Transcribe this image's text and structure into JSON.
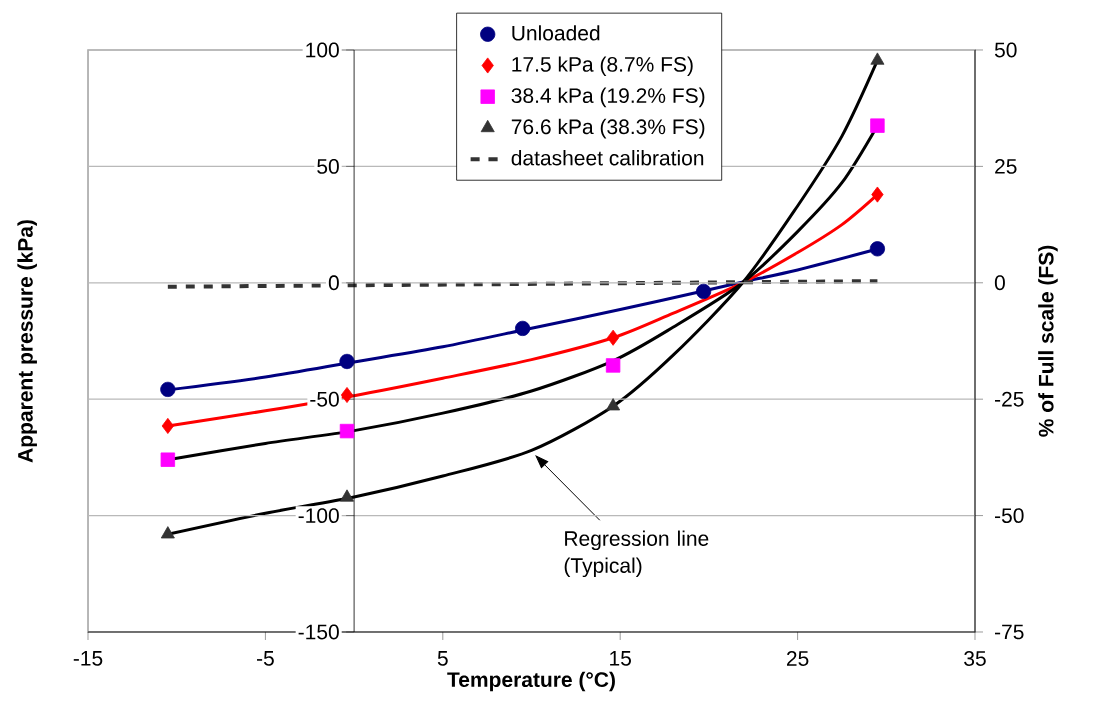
{
  "chart_data": {
    "type": "scatter",
    "xlabel": "Temperature (°C)",
    "ylabel": "Apparent pressure (kPa)",
    "y2label": "% of Full scale (FS)",
    "xlim": [
      -15,
      35
    ],
    "xticks": [
      -15,
      -5,
      5,
      15,
      25,
      35
    ],
    "ylim": [
      -150,
      100
    ],
    "yticks": [
      -150,
      -100,
      -50,
      0,
      50,
      100
    ],
    "y2lim": [
      -75,
      50
    ],
    "y2ticks": [
      -75,
      -50,
      -25,
      0,
      25,
      50
    ],
    "grid": "y",
    "legend": "top",
    "annotations": [
      "Regression line (Typical)"
    ],
    "series": [
      {
        "type": "line",
        "color": "#000080",
        "marker": "none",
        "x": [
          -10.5,
          -5,
          0,
          5,
          10,
          15,
          20,
          22,
          25,
          29.5
        ],
        "values": [
          -46,
          -40.5,
          -34,
          -27.5,
          -19.5,
          -11.5,
          -3,
          0.5,
          5.5,
          14.5
        ]
      },
      {
        "type": "line",
        "color": "#ff0000",
        "marker": "none",
        "x": [
          -10.5,
          -5,
          0,
          5,
          10,
          14.6,
          18,
          21.9,
          25,
          27.5,
          29.5
        ],
        "values": [
          -61.5,
          -55,
          -48.5,
          -41,
          -33,
          -23.6,
          -13,
          0,
          13,
          25,
          37.9
        ]
      },
      {
        "type": "line",
        "color": "#000000",
        "marker": "none",
        "x": [
          -10.5,
          -5,
          0,
          5,
          10,
          14.6,
          18,
          21.9,
          25,
          27.5,
          29.5
        ],
        "values": [
          -76,
          -69,
          -63.5,
          -56,
          -46.5,
          -33.5,
          -19,
          0,
          22,
          43,
          67.5
        ]
      },
      {
        "type": "line",
        "color": "#000000",
        "marker": "none",
        "x": [
          -10.5,
          -5,
          0,
          5,
          10,
          14.6,
          18,
          21.9,
          25,
          27.5,
          29.5
        ],
        "values": [
          -108,
          -99,
          -92,
          -83,
          -72,
          -53,
          -31,
          0,
          33,
          63,
          95.5
        ]
      },
      {
        "name": "Unloaded",
        "color": "#000080",
        "marker": "circle",
        "x": [
          -10.5,
          -0.4,
          9.5,
          19.7,
          29.5
        ],
        "values": [
          -45.8,
          -33.8,
          -19.6,
          -3.7,
          14.6
        ]
      },
      {
        "name": "17.5 kPa (8.7% FS)",
        "color": "#ff0000",
        "marker": "diamond",
        "x": [
          -10.5,
          -0.4,
          14.6,
          29.5
        ],
        "values": [
          -61.5,
          -48.2,
          -23.6,
          37.9
        ]
      },
      {
        "name": "38.4 kPa (19.2% FS)",
        "color": "#ff00ff",
        "marker": "square",
        "x": [
          -10.5,
          -0.4,
          14.6,
          29.5
        ],
        "values": [
          -76,
          -63.7,
          -35.5,
          67.5
        ]
      },
      {
        "name": "76.6 kPa (38.3% FS)",
        "color": "#333333",
        "marker": "triangle",
        "x": [
          -10.5,
          -0.4,
          14.6,
          29.5
        ],
        "values": [
          -108,
          -92.2,
          -53,
          95.5
        ]
      },
      {
        "name": "datasheet calibration",
        "type": "line",
        "color": "#333333",
        "marker": "none",
        "line_style": "dashed",
        "x": [
          -10.5,
          29.5
        ],
        "values": [
          -1.7,
          0.7
        ]
      }
    ]
  }
}
